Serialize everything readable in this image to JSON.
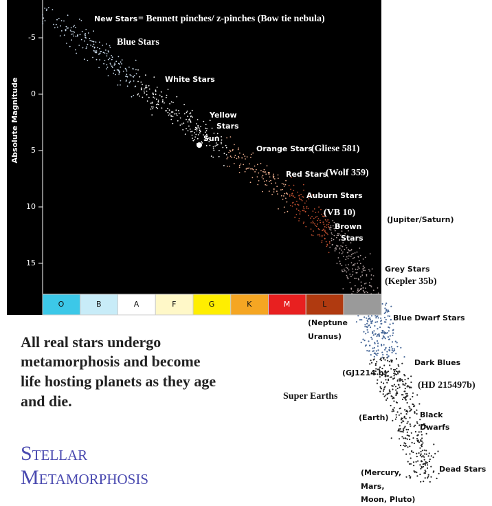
{
  "axis": {
    "label": "Absolute Magnitude",
    "ticks": [
      "-5",
      "0",
      "5",
      "10",
      "15"
    ]
  },
  "spectral_classes": [
    "O",
    "B",
    "A",
    "F",
    "G",
    "K",
    "M",
    "L"
  ],
  "annotations": [
    "New Stars",
    "= Bennett pinches/ z-pinches (Bow tie nebula)",
    "Blue Stars",
    "White Stars",
    "Yellow",
    "Stars",
    "Sun",
    "Orange Stars",
    "(Gliese 581)",
    "Red Stars",
    "(Wolf 359)",
    "Auburn Stars",
    "(VB 10)",
    "Brown",
    "Stars",
    "(Jupiter/Saturn)",
    "Grey Stars",
    "(Kepler 35b)",
    "Blue Dwarf Stars",
    "(Neptune",
    "Uranus)",
    "Dark Blues",
    "(GJ1214 b)",
    "(HD 215497b)",
    "Super Earths",
    "(Earth)",
    "Black",
    "Dwarfs",
    "Dead Stars",
    "(Mercury,",
    "Mars,",
    "Moon, Pluto)"
  ],
  "caption": [
    "All real stars undergo",
    "metamorphosis and become",
    "life hosting planets as they age",
    "and die."
  ],
  "title": [
    "Stellar",
    "Metamorphosis"
  ]
}
